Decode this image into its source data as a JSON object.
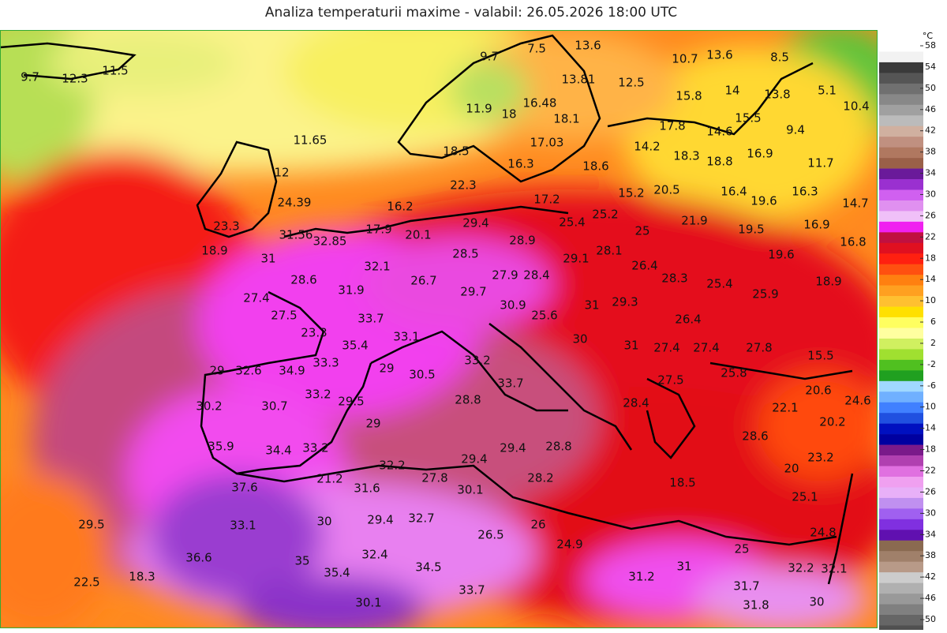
{
  "header": {
    "title": "Analiza temperaturii maxime - valabil: 26.05.2026 18:00 UTC"
  },
  "map": {
    "labels": [
      "9.7",
      "12.3",
      "11.5",
      "9.7",
      "7.5",
      "13.6",
      "10.7",
      "13.6",
      "8.5",
      "5.1",
      "10.4",
      "13.81",
      "12.5",
      "15.8",
      "14",
      "13.8",
      "11.9",
      "16.48",
      "18",
      "18.1",
      "17.8",
      "15.5",
      "14.6",
      "9.4",
      "11.65",
      "17.03",
      "16.9",
      "11.7",
      "18.5",
      "14.2",
      "18.3",
      "18.8",
      "16.3",
      "18.6",
      "12",
      "22.3",
      "17.2",
      "15.2",
      "20.5",
      "16.4",
      "16.3",
      "14.7",
      "19.6",
      "16.2",
      "24.39",
      "16.9",
      "25.4",
      "25.2",
      "21.9",
      "19.5",
      "16.8",
      "17.9",
      "20.1",
      "29.4",
      "25",
      "23.3",
      "31.56",
      "32.85",
      "28.9",
      "18.9",
      "28.5",
      "29.1",
      "28.1",
      "19.6",
      "31",
      "32.1",
      "26.4",
      "28.4",
      "27.9",
      "18.9",
      "28.6",
      "26.7",
      "28.3",
      "25.4",
      "31.9",
      "29.7",
      "25.9",
      "27.4",
      "30.9",
      "31",
      "29.3",
      "27.5",
      "33.7",
      "25.6",
      "26.4",
      "23.3",
      "33.1",
      "30",
      "31",
      "35.4",
      "27.4",
      "27.4",
      "27.8",
      "15.5",
      "33.3",
      "33.2",
      "34.9",
      "29",
      "30.5",
      "25.8",
      "32.6",
      "29",
      "27.5",
      "33.7",
      "20.6",
      "24.6",
      "33.2",
      "29.5",
      "30.2",
      "30.7",
      "28.8",
      "28.4",
      "22.1",
      "20.2",
      "29",
      "28.6",
      "35.9",
      "34.4",
      "33.2",
      "29.4",
      "28.8",
      "23.2",
      "29.4",
      "32.2",
      "37.6",
      "21.2",
      "27.8",
      "28.2",
      "31.6",
      "30.1",
      "25.1",
      "32.7",
      "29.4",
      "30",
      "33.1",
      "29.5",
      "36.6",
      "35",
      "32.4",
      "34.5",
      "35.4",
      "31.2",
      "31",
      "32.2",
      "32.1",
      "22.5",
      "18.3",
      "31.7",
      "33.7",
      "30.1",
      "31.8",
      "30",
      "24.9",
      "26",
      "25",
      "20",
      "18.5",
      "26.5",
      "24.8"
    ]
  },
  "legend": {
    "unit": "°C",
    "ticks": [
      58,
      54,
      50,
      46,
      42,
      38,
      34,
      30,
      26,
      22,
      18,
      14,
      10,
      6,
      2,
      -2,
      -6,
      -10,
      -14,
      -18,
      -22,
      -26,
      -30,
      -34,
      -38,
      -42,
      -46,
      -50
    ]
  }
}
